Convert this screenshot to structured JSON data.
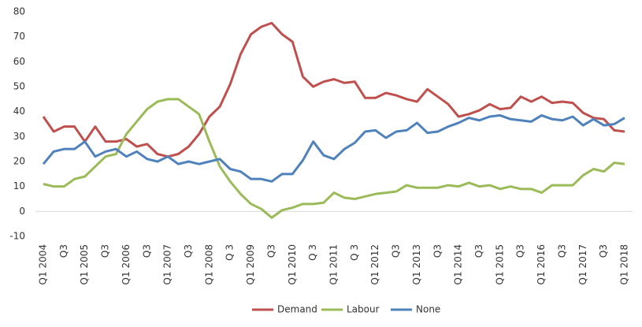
{
  "chart_data": {
    "type": "line",
    "categories": [
      "Q1 2004",
      null,
      "Q3",
      null,
      "Q1 2005",
      null,
      "Q3",
      null,
      "Q1 2006",
      null,
      "Q3",
      null,
      "Q1 2007",
      null,
      "Q3",
      null,
      "Q1 2008",
      null,
      "Q 3",
      null,
      "Q1 2009",
      null,
      "Q3",
      null,
      "Q1 2010",
      null,
      "Q 3",
      null,
      "Q1 2011",
      null,
      "Q 3",
      null,
      "Q1 2012",
      null,
      "Q3",
      null,
      "Q1 2013",
      null,
      "Q3",
      null,
      "Q1 2014",
      null,
      "Q3",
      null,
      "Q1 2015",
      null,
      "Q3",
      null,
      "Q1 2016",
      null,
      "Q3",
      null,
      "Q1 2017",
      null,
      "Q3",
      null,
      "Q1 2018"
    ],
    "series": [
      {
        "name": "Demand",
        "color": "#c0504d",
        "values": [
          38,
          32,
          34,
          34,
          28,
          34,
          28,
          28,
          29,
          26,
          27,
          23,
          22,
          23,
          26,
          31,
          38,
          42,
          51,
          63,
          71,
          74,
          75.5,
          71,
          68,
          54,
          50,
          52,
          53,
          51.5,
          52,
          45.5,
          45.5,
          47.5,
          46.5,
          45,
          44,
          49,
          46,
          43,
          38,
          39,
          40.5,
          43,
          41,
          41.5,
          46,
          44,
          46,
          43.5,
          44,
          43.5,
          39.5,
          37.5,
          37,
          32.5,
          32
        ]
      },
      {
        "name": "Labour",
        "color": "#9bbb59",
        "values": [
          11,
          10,
          10,
          13,
          14,
          18,
          22,
          23,
          31,
          36,
          41,
          44,
          45,
          45,
          42,
          39,
          28,
          18,
          12,
          7,
          3,
          1,
          -2.5,
          0.5,
          1.5,
          3,
          3,
          3.5,
          7.5,
          5.5,
          5,
          6,
          7,
          7.5,
          8,
          10.5,
          9.5,
          9.5,
          9.5,
          10.5,
          10,
          11.5,
          10,
          10.5,
          9,
          10,
          9,
          9,
          7.5,
          10.5,
          10.5,
          10.5,
          14.5,
          17,
          16,
          19.5,
          19
        ]
      },
      {
        "name": "None",
        "color": "#4f81bd",
        "values": [
          19,
          24,
          25,
          25,
          28,
          22,
          24,
          25,
          22,
          24,
          21,
          20,
          22,
          19,
          20,
          19,
          20,
          21,
          17,
          16,
          13,
          13,
          12,
          15,
          15,
          20.5,
          28,
          22.5,
          21,
          25,
          27.5,
          32,
          32.5,
          29.5,
          32,
          32.5,
          35.5,
          31.5,
          32,
          34,
          35.5,
          37.5,
          36.5,
          38,
          38.5,
          37,
          36.5,
          36,
          38.5,
          37,
          36.5,
          38,
          34.5,
          37,
          34.5,
          35,
          37.5
        ]
      }
    ],
    "ylim": [
      -10,
      80
    ],
    "yticks": [
      -10,
      0,
      10,
      20,
      30,
      40,
      50,
      60,
      70,
      80
    ],
    "grid": false,
    "legend": "bottom"
  }
}
